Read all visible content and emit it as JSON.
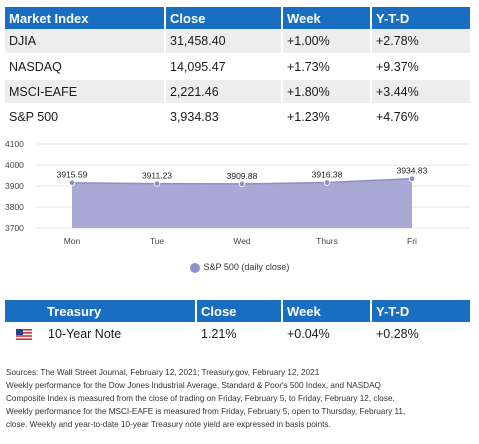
{
  "market": {
    "headers": [
      "Market Index",
      "Close",
      "Week",
      "Y-T-D"
    ],
    "rows": [
      {
        "name": "DJIA",
        "close": "31,458.40",
        "week": "+1.00%",
        "ytd": "+2.78%"
      },
      {
        "name": "NASDAQ",
        "close": "14,095.47",
        "week": "+1.73%",
        "ytd": "+9.37%"
      },
      {
        "name": "MSCI-EAFE",
        "close": "2,221.46",
        "week": "+1.80%",
        "ytd": "+3.44%"
      },
      {
        "name": "S&P 500",
        "close": "3,934.83",
        "week": "+1.23%",
        "ytd": "+4.76%"
      }
    ]
  },
  "chart_data": {
    "type": "area",
    "categories": [
      "Mon",
      "Tue",
      "Wed",
      "Thurs",
      "Fri"
    ],
    "series": [
      {
        "name": "S&P 500 (daily close)",
        "values": [
          3915.59,
          3911.23,
          3909.88,
          3916.38,
          3934.83
        ]
      }
    ],
    "data_labels": [
      "3915.59",
      "3911.23",
      "3909.88",
      "3916.38",
      "3934.83"
    ],
    "y_ticks": [
      "4100",
      "4000",
      "3900",
      "3800",
      "3700"
    ],
    "ylim": [
      3700,
      4100
    ],
    "grid": true,
    "legend_position": "bottom",
    "colors": {
      "fill": "#a9a9d6",
      "line": "#8f8fc7",
      "marker": "#8f8fc7",
      "grid": "#dddddd"
    }
  },
  "treasury": {
    "headers": [
      "Treasury",
      "Close",
      "Week",
      "Y-T-D"
    ],
    "row": {
      "flag_icon": "us-flag-icon",
      "name": "10-Year Note",
      "close": "1.21%",
      "week": "+0.04%",
      "ytd": "+0.28%"
    }
  },
  "footnotes": {
    "line1": "Sources: The Wall Street Journal, February 12, 2021; Treasury.gov, February 12, 2021",
    "line2": "Weekly performance for the Dow Jones Industrial Average, Standard & Poor's 500 Index, and NASDAQ",
    "line3": "Composite Index is measured from the close of trading on Friday, February 5, to Friday, February 12, close.",
    "line4": "Weekly performance for the MSCI-EAFE is measured from Friday, February 5, open to Thursday, February 11,",
    "line5": "close. Weekly and year-to-date 10-year Treasury note yield are expressed in basis points."
  }
}
